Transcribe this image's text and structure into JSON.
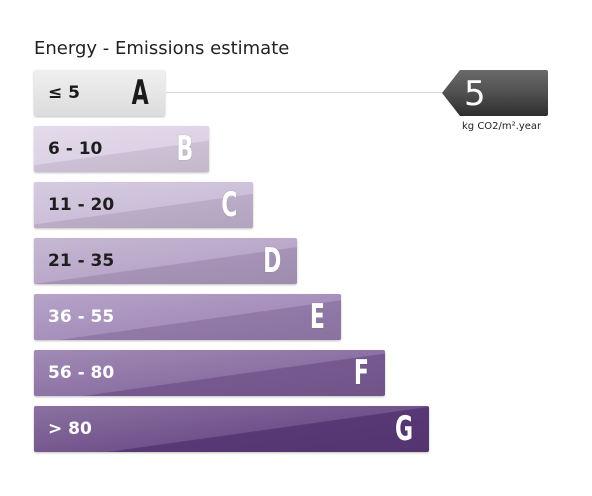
{
  "title": "Energy - Emissions estimate",
  "current": {
    "value": "5",
    "unit": "kg CO2/m².year",
    "class": "A"
  },
  "colors": {
    "A_fill": "#e4e4e4",
    "A_text": "#1a1a1a",
    "bands": [
      "#d8cce2",
      "#c6b6d4",
      "#b09cc2",
      "#9a80b2",
      "#7d5e98",
      "#5e3b7c"
    ],
    "indicator": "#4a4a4a"
  },
  "chart_data": {
    "type": "bar",
    "categories": [
      "≤ 5",
      "6 - 10",
      "11 - 20",
      "21 - 35",
      "36 - 55",
      "56 - 80",
      "> 80"
    ],
    "letters": [
      "A",
      "B",
      "C",
      "D",
      "E",
      "F",
      "G"
    ],
    "values": [
      1,
      2,
      3,
      4,
      5,
      6,
      7
    ],
    "title": "Energy - Emissions estimate",
    "highlighted_category": "≤ 5",
    "indicator_value": 5,
    "unit": "kg CO2/m².year"
  }
}
